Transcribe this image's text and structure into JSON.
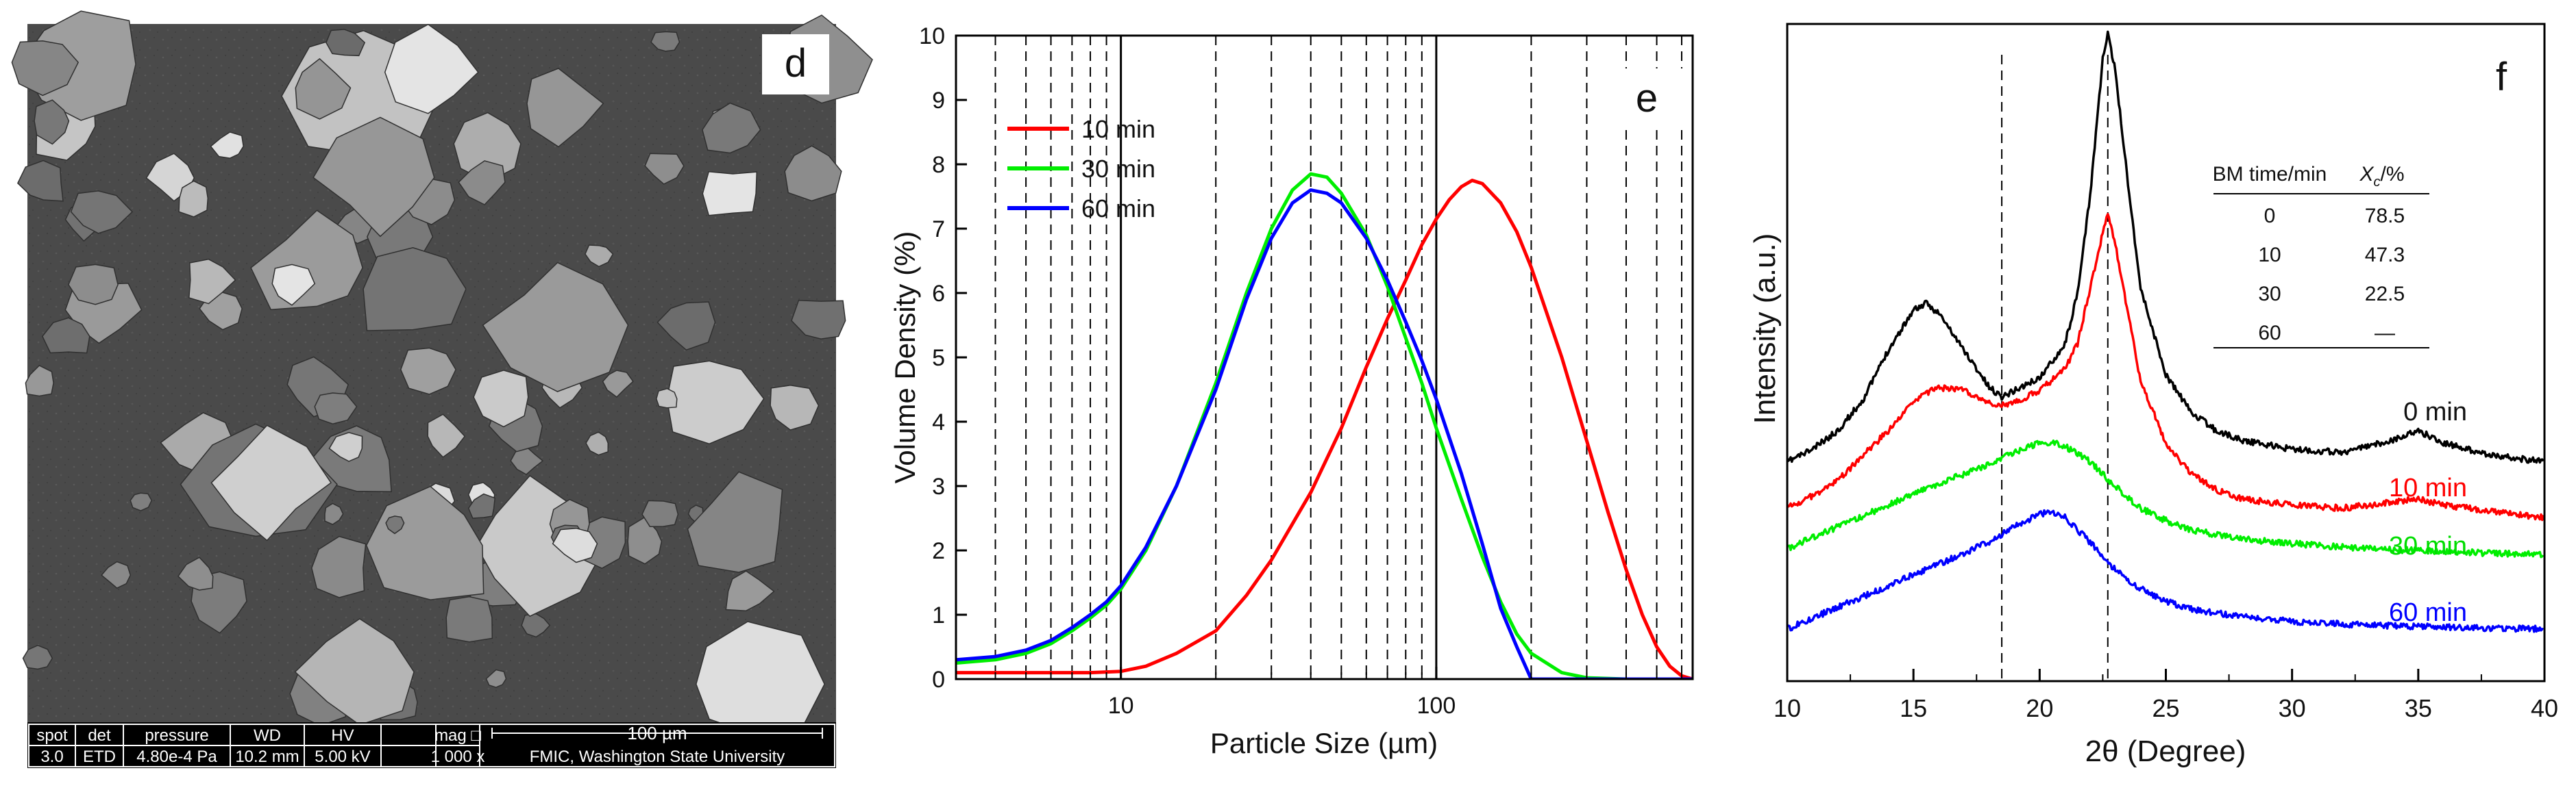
{
  "panels": {
    "d": {
      "label": "d"
    },
    "e": {
      "label": "e"
    },
    "f": {
      "label": "f"
    }
  },
  "sem": {
    "headers": [
      "spot",
      "det",
      "pressure",
      "WD",
      "HV",
      "mag □"
    ],
    "values": [
      "3.0",
      "ETD",
      "4.80e-4 Pa",
      "10.2 mm",
      "5.00 kV",
      "1 000 x"
    ],
    "scale_label": "100 µm",
    "facility": "FMIC, Washington State University"
  },
  "chart_data": [
    {
      "type": "line",
      "panel": "e",
      "title": "",
      "xlabel": "Particle Size (µm)",
      "ylabel": "Volume Density (%)",
      "xscale": "log",
      "xlim": [
        3.0,
        650
      ],
      "ylim": [
        0,
        10
      ],
      "xticks": [
        10,
        100
      ],
      "yticks": [
        0,
        1,
        2,
        3,
        4,
        5,
        6,
        7,
        8,
        9,
        10
      ],
      "vertical_dashed_lines": [
        4,
        5,
        6,
        7,
        8,
        9,
        20,
        30,
        40,
        50,
        60,
        70,
        80,
        90,
        200,
        300,
        400,
        500,
        600
      ],
      "vertical_solid_lines": [
        10,
        100
      ],
      "legend_position": "top-left",
      "series": [
        {
          "name": "10 min",
          "color": "#ff0000",
          "x": [
            3,
            5,
            8,
            10,
            12,
            15,
            20,
            25,
            30,
            40,
            50,
            60,
            70,
            80,
            90,
            100,
            110,
            120,
            130,
            140,
            160,
            180,
            200,
            250,
            300,
            350,
            400,
            450,
            500,
            550,
            600,
            650
          ],
          "y": [
            0.1,
            0.1,
            0.1,
            0.12,
            0.2,
            0.4,
            0.75,
            1.3,
            1.85,
            2.9,
            3.9,
            4.85,
            5.6,
            6.2,
            6.75,
            7.15,
            7.45,
            7.65,
            7.75,
            7.7,
            7.4,
            6.95,
            6.4,
            5.0,
            3.7,
            2.6,
            1.7,
            1.0,
            0.5,
            0.2,
            0.05,
            0.0
          ]
        },
        {
          "name": "30 min",
          "color": "#00ee00",
          "x": [
            3,
            4,
            5,
            6,
            7,
            8,
            9,
            10,
            12,
            15,
            20,
            25,
            30,
            35,
            40,
            45,
            50,
            60,
            70,
            80,
            90,
            100,
            120,
            140,
            160,
            180,
            200,
            250,
            300,
            400,
            500,
            650
          ],
          "y": [
            0.25,
            0.3,
            0.4,
            0.55,
            0.75,
            0.95,
            1.15,
            1.4,
            2.0,
            3.0,
            4.6,
            6.0,
            7.0,
            7.6,
            7.85,
            7.8,
            7.55,
            6.9,
            6.1,
            5.3,
            4.6,
            3.9,
            2.8,
            1.9,
            1.2,
            0.7,
            0.4,
            0.1,
            0.02,
            0.0,
            0.0,
            0.0
          ]
        },
        {
          "name": "60 min",
          "color": "#0000ff",
          "x": [
            3,
            4,
            5,
            6,
            7,
            8,
            9,
            10,
            12,
            15,
            20,
            25,
            30,
            35,
            40,
            45,
            50,
            60,
            70,
            80,
            90,
            100,
            120,
            140,
            160,
            180,
            200,
            250,
            300,
            400,
            500,
            650
          ],
          "y": [
            0.3,
            0.35,
            0.45,
            0.6,
            0.8,
            1.0,
            1.2,
            1.45,
            2.05,
            3.0,
            4.5,
            5.9,
            6.85,
            7.4,
            7.6,
            7.55,
            7.4,
            6.85,
            6.2,
            5.55,
            4.95,
            4.35,
            3.2,
            2.1,
            1.1,
            0.5,
            0.0,
            0.0,
            0.0,
            0.0,
            0.0,
            0.0
          ]
        }
      ]
    },
    {
      "type": "line",
      "panel": "f",
      "title": "",
      "xlabel": "2θ (Degree)",
      "ylabel": "Intensity (a.u.)",
      "xlim": [
        10,
        40
      ],
      "ylim": [
        0,
        10
      ],
      "xticks": [
        10,
        15,
        20,
        25,
        30,
        35,
        40
      ],
      "vertical_dashed_lines": [
        18.5,
        22.7
      ],
      "curve_labels": [
        "0 min",
        "10 min",
        "30 min",
        "60 min"
      ],
      "series": [
        {
          "name": "0 min",
          "color": "#000000",
          "x": [
            10,
            11,
            12,
            13,
            14,
            15,
            15.5,
            16,
            17,
            18,
            18.5,
            19,
            20,
            21,
            21.5,
            22,
            22.5,
            22.7,
            23,
            23.5,
            24,
            25,
            26,
            27,
            28,
            30,
            32,
            34,
            35,
            36,
            38,
            40
          ],
          "y": [
            3.1,
            3.3,
            3.6,
            4.1,
            4.9,
            5.55,
            5.65,
            5.5,
            4.9,
            4.3,
            4.15,
            4.25,
            4.45,
            5.0,
            5.8,
            7.4,
            9.6,
            10.0,
            9.4,
            7.6,
            5.9,
            4.5,
            3.9,
            3.6,
            3.45,
            3.3,
            3.25,
            3.45,
            3.6,
            3.4,
            3.2,
            3.1
          ]
        },
        {
          "name": "10 min",
          "color": "#ff0000",
          "x": [
            10,
            11,
            12,
            13,
            14,
            15,
            16,
            17,
            18,
            18.5,
            19,
            20,
            21,
            21.5,
            22,
            22.5,
            22.7,
            23,
            23.5,
            24,
            25,
            26,
            27,
            28,
            30,
            32,
            34,
            35,
            36,
            38,
            40
          ],
          "y": [
            2.35,
            2.55,
            2.8,
            3.2,
            3.6,
            4.1,
            4.3,
            4.25,
            4.05,
            4.0,
            4.05,
            4.25,
            4.6,
            5.0,
            5.9,
            6.8,
            7.1,
            6.6,
            5.5,
            4.4,
            3.4,
            2.9,
            2.65,
            2.5,
            2.4,
            2.35,
            2.45,
            2.5,
            2.4,
            2.3,
            2.2
          ]
        },
        {
          "name": "30 min",
          "color": "#00ee00",
          "x": [
            10,
            12,
            14,
            16,
            18,
            19,
            20,
            20.5,
            21,
            22,
            23,
            24,
            25,
            26,
            28,
            30,
            32,
            34,
            36,
            38,
            40
          ],
          "y": [
            1.7,
            2.05,
            2.4,
            2.75,
            3.05,
            3.25,
            3.4,
            3.42,
            3.35,
            3.1,
            2.7,
            2.35,
            2.15,
            2.0,
            1.85,
            1.78,
            1.72,
            1.68,
            1.65,
            1.62,
            1.6
          ]
        },
        {
          "name": "60 min",
          "color": "#0000ff",
          "x": [
            10,
            12,
            14,
            16,
            18,
            19,
            20,
            20.5,
            21,
            22,
            23,
            24,
            25,
            26,
            28,
            30,
            32,
            34,
            36,
            38,
            40
          ],
          "y": [
            0.4,
            0.75,
            1.1,
            1.45,
            1.8,
            2.05,
            2.25,
            2.3,
            2.2,
            1.8,
            1.35,
            1.05,
            0.85,
            0.72,
            0.6,
            0.52,
            0.48,
            0.45,
            0.43,
            0.41,
            0.4
          ]
        }
      ],
      "table": {
        "headers": [
          "BM time/min",
          "X",
          "c",
          "/%"
        ],
        "rows": [
          [
            "0",
            "78.5"
          ],
          [
            "10",
            "47.3"
          ],
          [
            "30",
            "22.5"
          ],
          [
            "60",
            "—"
          ]
        ]
      }
    }
  ]
}
